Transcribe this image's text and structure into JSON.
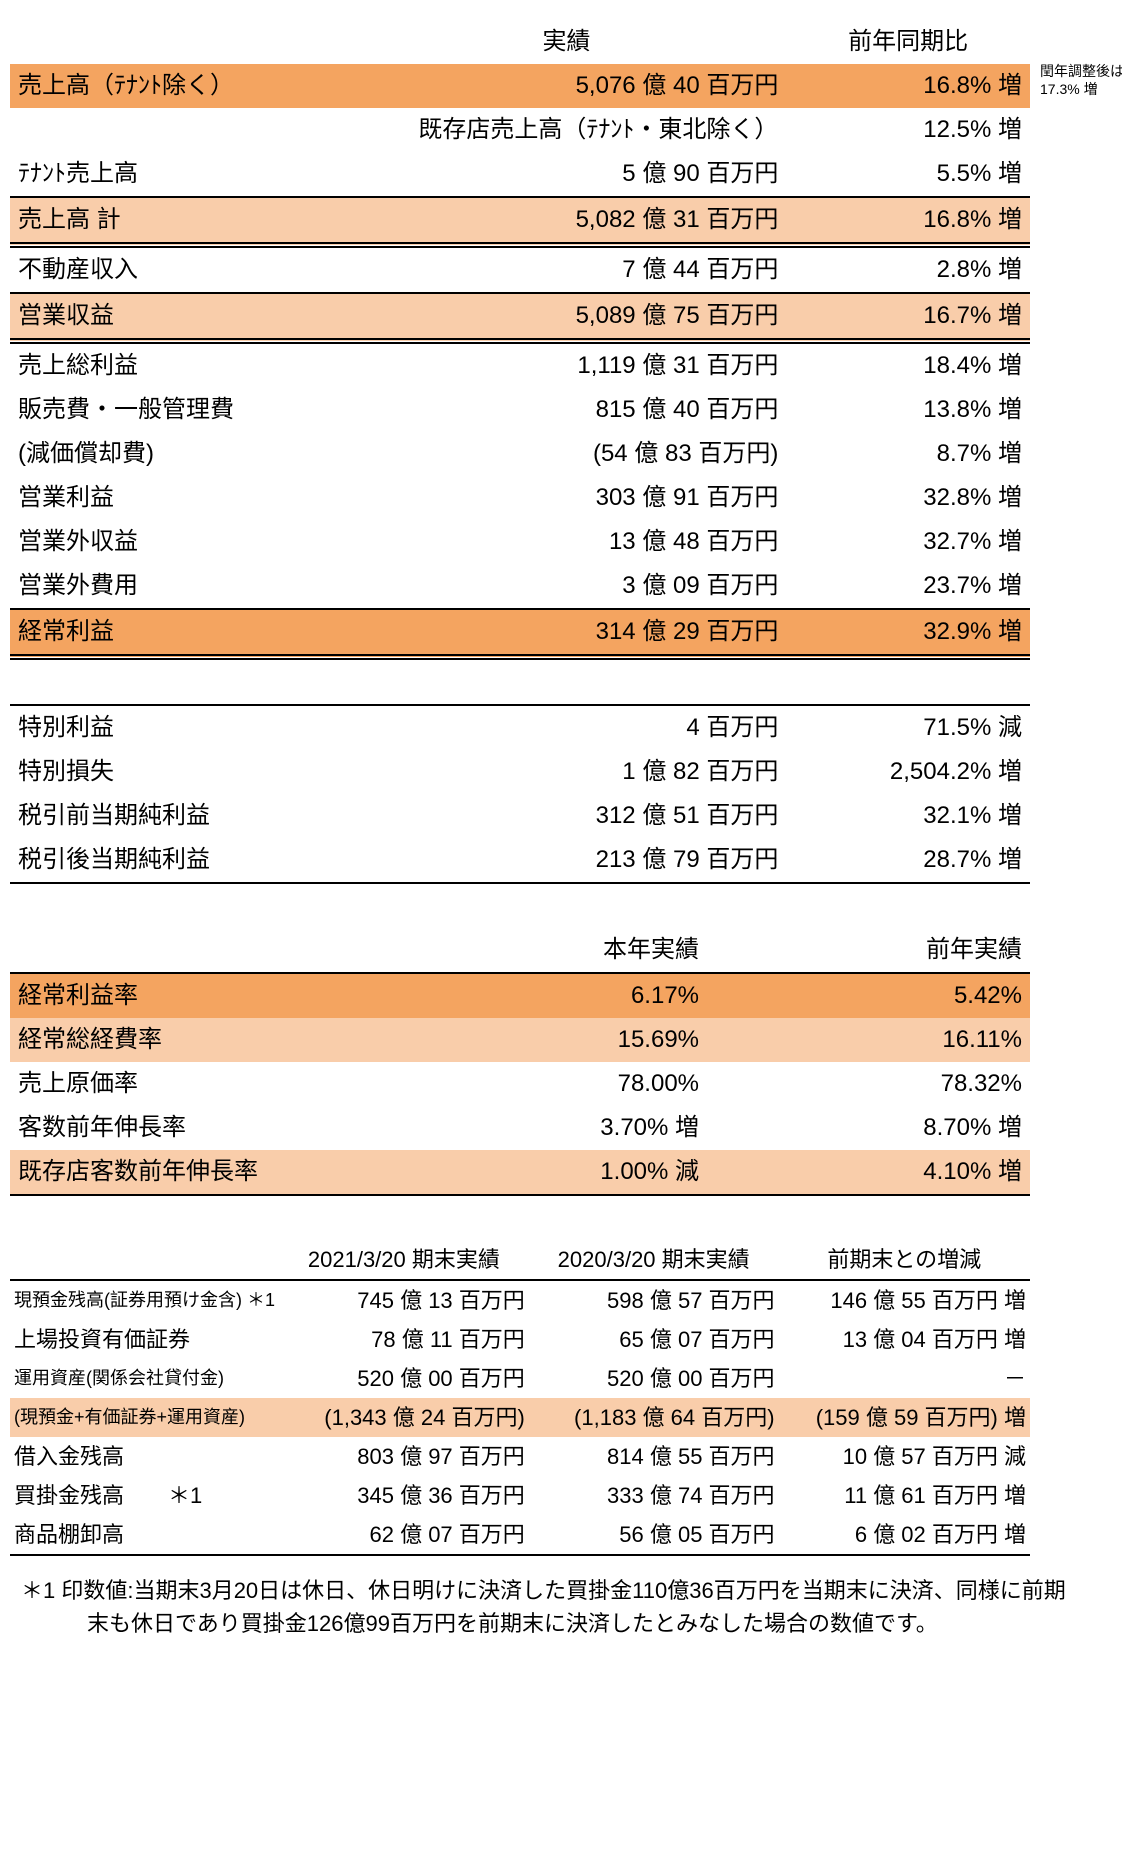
{
  "colors": {
    "highlight_dark": "#f4a460",
    "highlight_light": "#f9cdaa",
    "background": "#ffffff",
    "text": "#000000",
    "border": "#000000"
  },
  "side_note": "閏年調整後は17.3% 増",
  "table1": {
    "headers": {
      "col2": "実績",
      "col3": "前年同期比"
    },
    "rows": [
      {
        "label": "売上高（ﾃﾅﾝﾄ除く）",
        "value": "5,076 億 40 百万円",
        "yoy": "16.8% 増",
        "hl": "dark"
      },
      {
        "label": "既存店売上高（ﾃﾅﾝﾄ・東北除く）",
        "value": "",
        "yoy": "12.5% 増",
        "label_in_value": true
      },
      {
        "label": "ﾃﾅﾝﾄ売上高",
        "value": "5 億 90 百万円",
        "yoy": "5.5% 増"
      },
      {
        "label": "売上高 計",
        "value": "5,082 億 31 百万円",
        "yoy": "16.8% 増",
        "hl": "light",
        "border_top": "thin"
      },
      {
        "label": "不動産収入",
        "value": "7 億 44 百万円",
        "yoy": "2.8% 増",
        "border_top": "double"
      },
      {
        "label": "営業収益",
        "value": "5,089 億 75 百万円",
        "yoy": "16.7% 増",
        "hl": "light",
        "border_top": "thin",
        "border_bottom": "double"
      },
      {
        "label": "売上総利益",
        "value": "1,119 億 31 百万円",
        "yoy": "18.4% 増"
      },
      {
        "label": "販売費・一般管理費",
        "value": "815 億 40 百万円",
        "yoy": "13.8% 増"
      },
      {
        "label": "(減価償却費)",
        "value": "(54 億 83 百万円)",
        "yoy": "8.7% 増"
      },
      {
        "label": "営業利益",
        "value": "303 億 91 百万円",
        "yoy": "32.8% 増"
      },
      {
        "label": "営業外収益",
        "value": "13 億 48 百万円",
        "yoy": "32.7% 増"
      },
      {
        "label": "営業外費用",
        "value": "3 億 09 百万円",
        "yoy": "23.7% 増"
      },
      {
        "label": "経常利益",
        "value": "314 億 29 百万円",
        "yoy": "32.9% 増",
        "hl": "dark",
        "border_top": "thin",
        "border_bottom": "double"
      }
    ],
    "rows2": [
      {
        "label": "特別利益",
        "value": "4 百万円",
        "yoy": "71.5% 減",
        "border_top": "thin"
      },
      {
        "label": "特別損失",
        "value": "1 億 82 百万円",
        "yoy": "2,504.2% 増"
      },
      {
        "label": "税引前当期純利益",
        "value": "312 億 51 百万円",
        "yoy": "32.1% 増"
      },
      {
        "label": "税引後当期純利益",
        "value": "213 億 79 百万円",
        "yoy": "28.7% 増",
        "border_bottom": "thin"
      }
    ]
  },
  "table2": {
    "headers": {
      "col2": "本年実績",
      "col3": "前年実績"
    },
    "rows": [
      {
        "label": "経常利益率",
        "v1": "6.17%",
        "v2": "5.42%",
        "hl": "dark",
        "border_top": "thin"
      },
      {
        "label": "経常総経費率",
        "v1": "15.69%",
        "v2": "16.11%",
        "hl": "light"
      },
      {
        "label": "売上原価率",
        "v1": "78.00%",
        "v2": "78.32%"
      },
      {
        "label": "客数前年伸長率",
        "v1": "3.70% 増",
        "v2": "8.70% 増"
      },
      {
        "label": "既存店客数前年伸長率",
        "v1": "1.00% 減",
        "v2": "4.10% 増",
        "hl": "light",
        "border_bottom": "thin"
      }
    ]
  },
  "table3": {
    "headers": {
      "c1": "2021/3/20 期末実績",
      "c2": "2020/3/20 期末実績",
      "c3": "前期末との増減"
    },
    "rows": [
      {
        "label": "現預金残高(証券用預け金含) ＊1",
        "small": true,
        "v1": "745 億 13 百万円",
        "v2": "598 億 57 百万円",
        "v3": "146 億 55 百万円 増",
        "border_top": "thin"
      },
      {
        "label": "上場投資有価証券",
        "v1": "78 億 11 百万円",
        "v2": "65 億 07 百万円",
        "v3": "13 億 04 百万円 増"
      },
      {
        "label": "運用資産(関係会社貸付金)",
        "small": true,
        "v1": "520 億 00 百万円",
        "v2": "520 億 00 百万円",
        "v3": "－"
      },
      {
        "label": "(現預金+有価証券+運用資産)",
        "small": true,
        "v1": "(1,343 億 24 百万円)",
        "v2": "(1,183 億 64 百万円)",
        "v3": "(159 億 59 百万円) 増",
        "hl": "light"
      },
      {
        "label": "借入金残高",
        "v1": "803 億 97 百万円",
        "v2": "814 億 55 百万円",
        "v3": "10 億 57 百万円 減"
      },
      {
        "label": "買掛金残高　　＊1",
        "v1": "345 億 36 百万円",
        "v2": "333 億 74 百万円",
        "v3": "11 億 61 百万円 増"
      },
      {
        "label": "商品棚卸高",
        "v1": "62 億 07 百万円",
        "v2": "56 億 05 百万円",
        "v3": "6 億 02 百万円 増",
        "border_bottom": "thin"
      }
    ]
  },
  "footnote": "＊1 印数値:当期末3月20日は休日、休日明けに決済した買掛金110億36百万円を当期末に決済、同様に前期末も休日であり買掛金126億99百万円を前期末に決済したとみなした場合の数値です。"
}
